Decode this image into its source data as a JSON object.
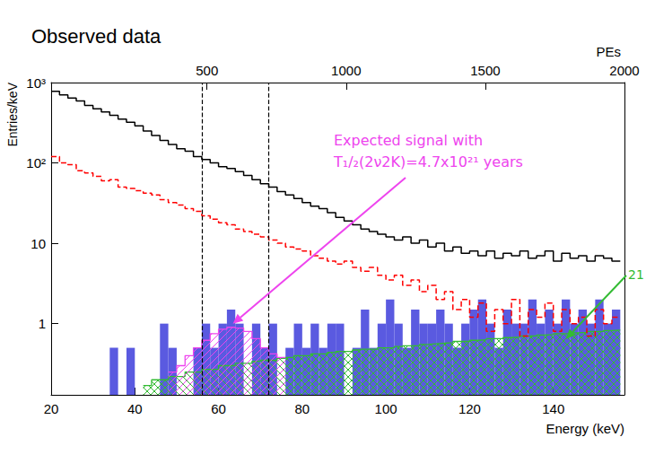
{
  "chart_data": {
    "type": "histogram",
    "title": "Observed data",
    "x_label": "Energy (keV)",
    "y_label": "Entries/keV",
    "x2_label": "PEs",
    "log": "y",
    "grid": false,
    "xlim": [
      20,
      157
    ],
    "xticks": [
      20,
      40,
      60,
      80,
      100,
      120,
      140
    ],
    "x2lim": [
      -60,
      2000
    ],
    "x2ticks": [
      500,
      1000,
      1500,
      2000
    ],
    "ylim": [
      0.13,
      1000
    ],
    "yticks": [
      1,
      10,
      {
        "value": 100,
        "label": "10²"
      },
      {
        "value": 1000,
        "label": "10³"
      }
    ],
    "bins": [
      20,
      22,
      24,
      26,
      28,
      30,
      32,
      34,
      36,
      38,
      40,
      42,
      44,
      46,
      48,
      50,
      52,
      54,
      56,
      58,
      60,
      62,
      64,
      66,
      68,
      70,
      72,
      74,
      76,
      78,
      80,
      82,
      84,
      86,
      88,
      90,
      92,
      94,
      96,
      98,
      100,
      102,
      104,
      106,
      108,
      110,
      112,
      114,
      116,
      118,
      120,
      122,
      124,
      126,
      128,
      130,
      132,
      134,
      136,
      138,
      140,
      142,
      144,
      146,
      148,
      150,
      152,
      154,
      156
    ],
    "series": [
      {
        "type": "bar",
        "color": "#5a5ae0",
        "values": [
          null,
          null,
          null,
          null,
          null,
          null,
          null,
          0.5,
          null,
          0.5,
          null,
          null,
          null,
          1,
          0.5,
          null,
          null,
          0.5,
          1,
          0.5,
          1,
          1.5,
          1,
          null,
          1,
          0.5,
          1,
          null,
          0.5,
          1,
          0.5,
          1,
          0.5,
          1,
          1,
          null,
          0.5,
          1.5,
          0.5,
          1,
          2,
          1,
          0.5,
          1.5,
          1,
          1,
          1.5,
          1,
          0.5,
          1,
          1.5,
          2,
          1,
          0.5,
          1.5,
          1,
          1,
          2,
          1,
          1.5,
          1,
          2,
          1,
          1.5,
          1,
          2,
          1,
          1.5
        ]
      },
      {
        "type": "area",
        "color": "#33bb33",
        "line_style": "solid",
        "values": [
          null,
          null,
          null,
          null,
          null,
          null,
          null,
          null,
          null,
          null,
          null,
          0.17,
          0.2,
          0.2,
          0.22,
          0.22,
          0.25,
          0.25,
          0.27,
          0.27,
          0.3,
          0.3,
          0.32,
          0.32,
          0.34,
          0.35,
          0.35,
          0.37,
          0.38,
          0.4,
          0.4,
          0.42,
          0.42,
          0.44,
          0.45,
          0.45,
          0.47,
          0.48,
          0.48,
          0.5,
          0.5,
          0.52,
          0.53,
          0.53,
          0.55,
          0.56,
          0.57,
          0.58,
          0.6,
          0.6,
          0.62,
          0.63,
          0.65,
          0.65,
          0.67,
          0.68,
          0.7,
          0.7,
          0.72,
          0.73,
          0.75,
          0.75,
          0.77,
          0.78,
          0.8,
          0.8,
          0.82,
          0.83
        ]
      },
      {
        "type": "area",
        "color": "#ee44ee",
        "line_style": "solid",
        "values": [
          null,
          null,
          null,
          null,
          null,
          null,
          null,
          null,
          null,
          null,
          null,
          null,
          null,
          null,
          0.25,
          0.3,
          0.4,
          0.5,
          0.62,
          0.75,
          0.85,
          0.9,
          0.88,
          0.8,
          0.65,
          0.5,
          0.42,
          0.38,
          null,
          null,
          null,
          null,
          null,
          null,
          null,
          null,
          null,
          null,
          null,
          null,
          null,
          null,
          null,
          null,
          null,
          null,
          null,
          null,
          null,
          null,
          null,
          null,
          null,
          null,
          null,
          null,
          null,
          null,
          null,
          null,
          null,
          null,
          null,
          null,
          null,
          null,
          null,
          null
        ]
      },
      {
        "type": "step",
        "color": "#ff0000",
        "line_style": "dashed",
        "values": [
          120,
          100,
          95,
          80,
          75,
          68,
          60,
          62,
          50,
          48,
          45,
          42,
          40,
          35,
          32,
          30,
          27,
          25,
          22,
          20,
          18,
          17,
          15,
          14,
          13,
          12,
          11,
          10,
          9,
          8.5,
          8,
          7,
          6.5,
          6,
          5.5,
          6,
          5,
          4.5,
          5,
          4,
          3.5,
          4,
          3,
          3.5,
          2.5,
          3,
          2,
          2.5,
          1.5,
          2,
          1.2,
          1.8,
          0.8,
          1.5,
          1,
          2,
          0.7,
          1.5,
          1.2,
          1.8,
          0.8,
          1.5,
          1,
          1.2,
          0.7,
          1.5,
          1,
          1.2
        ]
      },
      {
        "type": "step",
        "color": "#000000",
        "line_style": "solid",
        "values": [
          780,
          700,
          640,
          590,
          520,
          470,
          430,
          390,
          350,
          320,
          290,
          250,
          220,
          190,
          170,
          150,
          140,
          120,
          110,
          100,
          90,
          85,
          78,
          70,
          62,
          55,
          50,
          44,
          40,
          36,
          32,
          29,
          27,
          24,
          21,
          19,
          17,
          15,
          14,
          13,
          12,
          11,
          12,
          10,
          11,
          9,
          10,
          8,
          9,
          7.5,
          8,
          7,
          8,
          6.5,
          7.5,
          7,
          8,
          6.5,
          7,
          8,
          6,
          7.5,
          6.5,
          7,
          6,
          7,
          6.5,
          6
        ]
      }
    ],
    "vlines": [
      56,
      72
    ],
    "annotations": [
      {
        "text": [
          "Expected signal with",
          "T₁/₂(2ν2K)=4.7x10²¹ years"
        ],
        "color": "#ee44ee"
      },
      {
        "text": "21",
        "color": "#33bb33"
      }
    ]
  }
}
